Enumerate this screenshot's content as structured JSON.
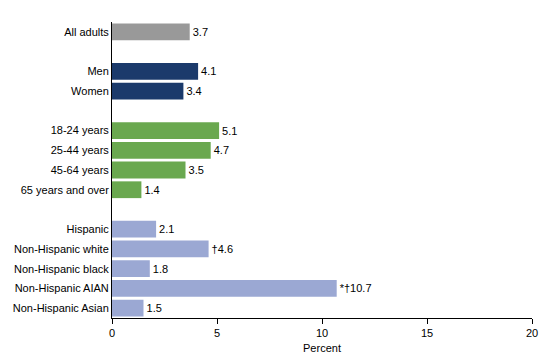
{
  "chart_data": {
    "type": "bar",
    "orientation": "horizontal",
    "x_label": "Percent",
    "categories": [
      "All adults",
      null,
      "Men",
      "Women",
      null,
      "18-24 years",
      "25-44 years",
      "45-64 years",
      "65 years and over",
      null,
      "Hispanic",
      "Non-Hispanic white",
      "Non-Hispanic black",
      "Non-Hispanic AIAN",
      "Non-Hispanic Asian"
    ],
    "values": [
      3.7,
      null,
      4.1,
      3.4,
      null,
      5.1,
      4.7,
      3.5,
      1.4,
      null,
      2.1,
      4.6,
      1.8,
      10.7,
      1.5
    ],
    "value_labels": [
      "3.7",
      null,
      "4.1",
      "3.4",
      null,
      "5.1",
      "4.7",
      "3.5",
      "1.4",
      null,
      "2.1",
      "†4.6",
      "1.8",
      "*†10.7",
      "1.5"
    ],
    "colors": [
      "#999999",
      null,
      "#1b3a6b",
      "#1b3a6b",
      null,
      "#6aa84f",
      "#6aa84f",
      "#6aa84f",
      "#6aa84f",
      null,
      "#9ba8d3",
      "#9ba8d3",
      "#9ba8d3",
      "#9ba8d3",
      "#9ba8d3"
    ],
    "data_labels": true,
    "xlim": [
      0,
      20
    ],
    "xticks": [
      0,
      5,
      10,
      15,
      20
    ],
    "grid": false
  }
}
